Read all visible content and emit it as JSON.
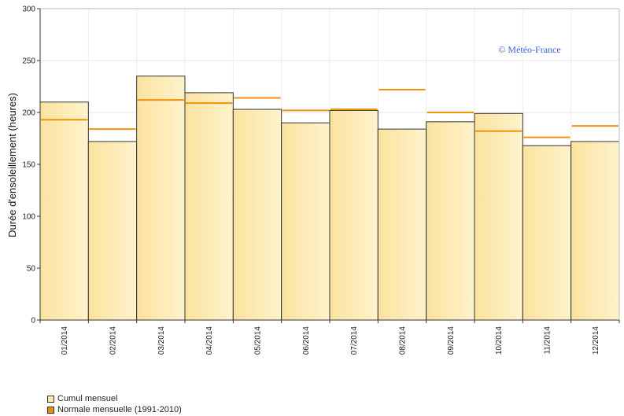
{
  "chart_data": {
    "type": "bar",
    "title": "",
    "xlabel": "",
    "ylabel": "Durée d'ensoleillement (heures)",
    "ylim": [
      0,
      300
    ],
    "yticks": [
      0,
      50,
      100,
      150,
      200,
      250,
      300
    ],
    "grid": true,
    "categories": [
      "01/2014",
      "02/2014",
      "03/2014",
      "04/2014",
      "05/2014",
      "06/2014",
      "07/2014",
      "08/2014",
      "09/2014",
      "10/2014",
      "11/2014",
      "12/2014"
    ],
    "series": [
      {
        "name": "Cumul mensuel",
        "kind": "bar",
        "values": [
          210,
          172,
          235,
          219,
          203,
          190,
          202,
          184,
          191,
          199,
          168,
          172
        ]
      },
      {
        "name": "Normale mensuelle (1991-2010)",
        "kind": "line-marker",
        "values": [
          193,
          184,
          212,
          209,
          214,
          202,
          203,
          222,
          200,
          182,
          176,
          187
        ]
      }
    ],
    "annotation": "© Météo-France",
    "legend_position": "bottom-left",
    "colors": {
      "bar_fill_light": "#fdf0c4",
      "bar_fill_dark": "#fbe09a",
      "bar_stroke": "#333333",
      "normal_line": "#f0920a",
      "annotation": "#3b5bdb"
    }
  }
}
